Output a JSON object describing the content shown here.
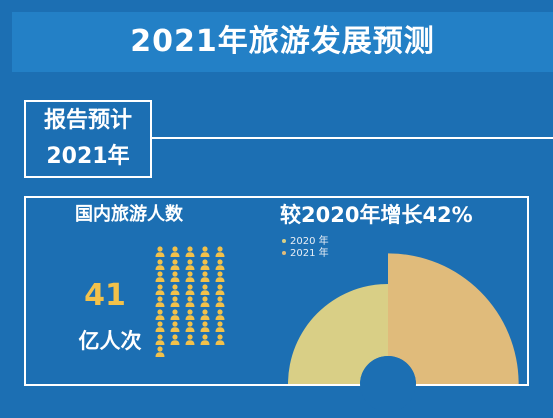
{
  "title": "2021年旅游发展预测",
  "report": {
    "line1": "报告预计",
    "line2": "2021年"
  },
  "left_panel": {
    "label": "国内旅游人数",
    "number": "41",
    "unit": "亿人次",
    "icon": "person-icon",
    "icon_count": 41,
    "icon_color": "#f2c14a"
  },
  "right_panel": {
    "label": "较2020年增长42%"
  },
  "chart_data": {
    "type": "pie",
    "series": [
      {
        "name": "2020 年",
        "color": "#d9cf86"
      },
      {
        "name": "2021 年",
        "color": "#e0bb7b"
      }
    ],
    "growth_percent": 42
  },
  "colors": {
    "background": "#1c6fb3",
    "banner": "#2380c6",
    "accent": "#f2c14a"
  }
}
